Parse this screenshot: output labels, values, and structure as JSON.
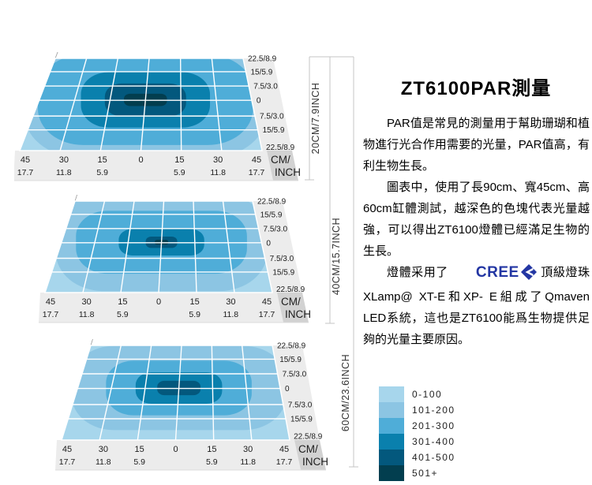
{
  "title": "ZT6100PAR測量",
  "paragraphs": {
    "p1": "PAR值是常見的測量用于幫助珊瑚和植物進行光合作用需要的光量，PAR值高，有利生物生長。",
    "p2": "圖表中，使用了長90cm、寬45cm、高60cm缸體測試，越深色的色塊代表光量越強，可以得出ZT6100燈體已經滿足生物的生長。",
    "p3_before": "燈體采用了",
    "p3_after": "頂級燈珠XLamp@ XT-E和XP- E組成了Qmaven LED系統，這也是ZT6100能爲生物提供足夠的光量主要原因。"
  },
  "cree_logo": {
    "text": "CREE",
    "color": "#2336A3"
  },
  "legend": {
    "items": [
      {
        "label": "0-100",
        "color": "#A7D6EC"
      },
      {
        "label": "101-200",
        "color": "#8CC5E3"
      },
      {
        "label": "201-300",
        "color": "#4FADD8"
      },
      {
        "label": "301-400",
        "color": "#0A80AD"
      },
      {
        "label": "401-500",
        "color": "#03587D"
      },
      {
        "label": "501+",
        "color": "#023E4F"
      }
    ]
  },
  "axes": {
    "x_cm": [
      "45",
      "30",
      "15",
      "0",
      "15",
      "30",
      "45"
    ],
    "x_inch": [
      "17.7",
      "11.8",
      "5.9",
      "",
      "5.9",
      "11.8",
      "17.7"
    ],
    "y_ticks": [
      "22.5/8.9",
      "15/5.9",
      "7.5/3.0",
      "0",
      "7.5/3.0",
      "15/5.9",
      "22.5/8.9"
    ],
    "unit_line1": "CM/",
    "unit_line2": "INCH"
  },
  "depth_rulers": [
    {
      "label": "20CM/7.9INCH"
    },
    {
      "label": "40CM/15.7INCH"
    },
    {
      "label": "60CM/23.6INCH"
    }
  ],
  "chart_data": [
    {
      "type": "heatmap",
      "subtype": "contour",
      "title": "PAR distribution at depth 20CM / 7.9 INCH",
      "depth": "20CM/7.9INCH",
      "x_range_cm": [
        -45,
        45
      ],
      "y_range_cm": [
        -22.5,
        22.5
      ],
      "x_ticks_cm": [
        45,
        30,
        15,
        0,
        15,
        30,
        45
      ],
      "x_ticks_inch": [
        17.7,
        11.8,
        5.9,
        null,
        5.9,
        11.8,
        17.7
      ],
      "y_ticks_cm_inch": [
        "22.5/8.9",
        "15/5.9",
        "7.5/3.0",
        "0",
        "7.5/3.0",
        "15/5.9",
        "22.5/8.9"
      ],
      "unit": "CM/INCH",
      "legend_levels": [
        "0-100",
        "101-200",
        "201-300",
        "301-400",
        "401-500",
        "501+"
      ],
      "base_level": "0-100",
      "center_par": "501+",
      "rings": [
        {
          "level": "101-200",
          "rx_cm": 51,
          "ry_cm": 28
        },
        {
          "level": "201-300",
          "rx_cm": 45,
          "ry_cm": 22
        },
        {
          "level": "301-400",
          "rx_cm": 27,
          "ry_cm": 13.5
        },
        {
          "level": "401-500",
          "rx_cm": 17,
          "ry_cm": 8
        },
        {
          "level": "501+",
          "rx_cm": 9,
          "ry_cm": 3
        }
      ]
    },
    {
      "type": "heatmap",
      "subtype": "contour",
      "title": "PAR distribution at depth 40CM / 15.7 INCH",
      "depth": "40CM/15.7INCH",
      "x_range_cm": [
        -45,
        45
      ],
      "y_range_cm": [
        -22.5,
        22.5
      ],
      "x_ticks_cm": [
        45,
        30,
        15,
        0,
        15,
        30,
        45
      ],
      "x_ticks_inch": [
        17.7,
        11.8,
        5.9,
        null,
        5.9,
        11.8,
        17.7
      ],
      "y_ticks_cm_inch": [
        "22.5/8.9",
        "15/5.9",
        "7.5/3.0",
        "0",
        "7.5/3.0",
        "15/5.9",
        "22.5/8.9"
      ],
      "unit": "CM/INCH",
      "legend_levels": [
        "0-100",
        "101-200",
        "201-300",
        "301-400",
        "401-500",
        "501+"
      ],
      "base_level": "0-100",
      "center_par": "501+",
      "rings": [
        {
          "level": "101-200",
          "rx_cm": 47,
          "ry_cm": 24
        },
        {
          "level": "201-300",
          "rx_cm": 38,
          "ry_cm": 15.5
        },
        {
          "level": "301-400",
          "rx_cm": 19,
          "ry_cm": 6.5
        },
        {
          "level": "401-500",
          "rx_cm": 7,
          "ry_cm": 2.8
        },
        {
          "level": "501+",
          "rx_cm": 3,
          "ry_cm": 1.2
        }
      ]
    },
    {
      "type": "heatmap",
      "subtype": "contour",
      "title": "PAR distribution at depth 60CM / 23.6 INCH",
      "depth": "60CM/23.6INCH",
      "x_range_cm": [
        -45,
        45
      ],
      "y_range_cm": [
        -22.5,
        22.5
      ],
      "x_ticks_cm": [
        45,
        30,
        15,
        0,
        15,
        30,
        45
      ],
      "x_ticks_inch": [
        17.7,
        11.8,
        5.9,
        null,
        5.9,
        11.8,
        17.7
      ],
      "y_ticks_cm_inch": [
        "22.5/8.9",
        "15/5.9",
        "7.5/3.0",
        "0",
        "7.5/3.0",
        "15/5.9",
        "22.5/8.9"
      ],
      "unit": "CM/INCH",
      "legend_levels": [
        "0-100",
        "101-200",
        "201-300",
        "301-400",
        "401-500",
        "501+"
      ],
      "base_level": "0-100",
      "center_par": "401-500",
      "rings": [
        {
          "level": "101-200",
          "rx_cm": 47,
          "ry_cm": 20
        },
        {
          "level": "201-300",
          "rx_cm": 32,
          "ry_cm": 13
        },
        {
          "level": "301-400",
          "rx_cm": 19,
          "ry_cm": 7.5
        },
        {
          "level": "401-500",
          "rx_cm": 9.5,
          "ry_cm": 3.4
        }
      ]
    }
  ]
}
